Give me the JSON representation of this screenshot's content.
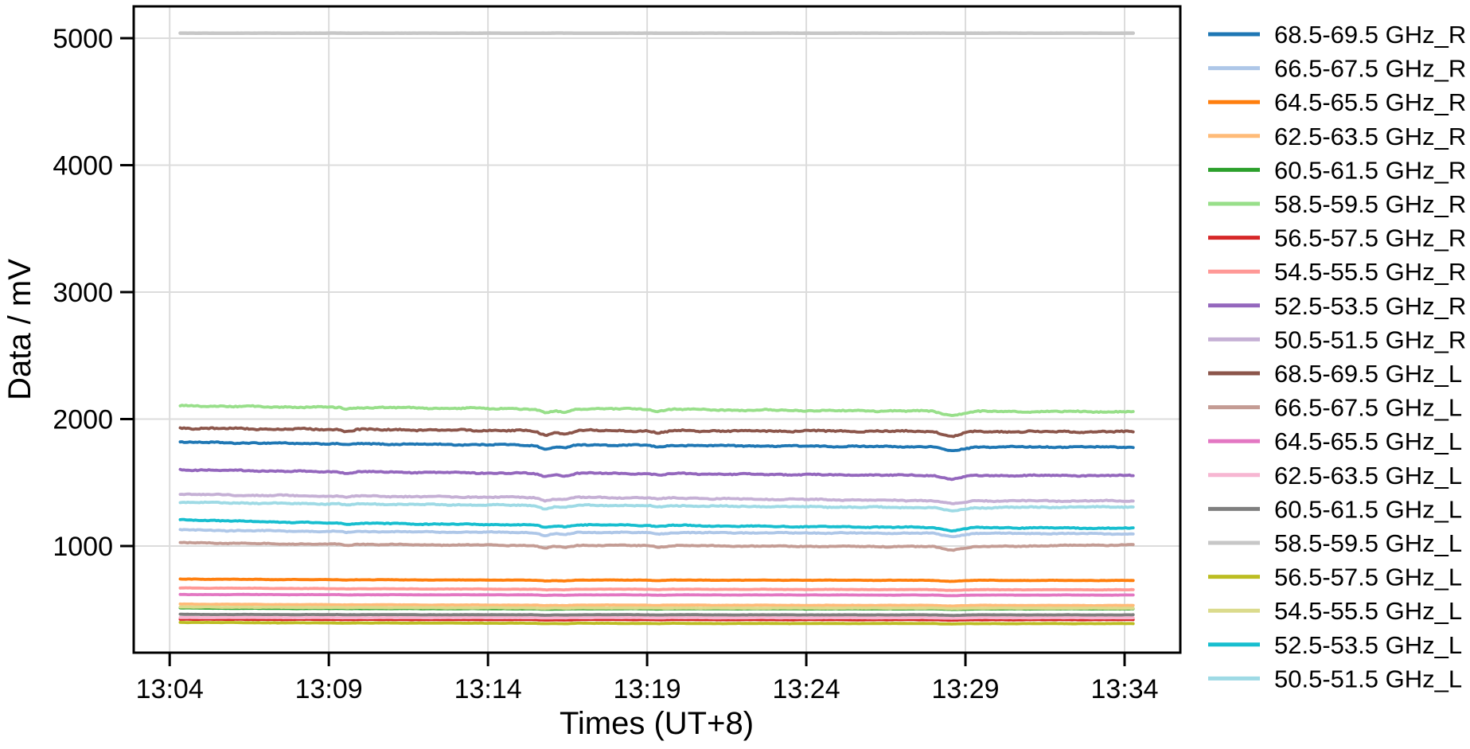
{
  "figure": {
    "background": "#ffffff",
    "spine_color": "#000000",
    "grid_color": "#dcdcdc",
    "tick_color": "#000000",
    "text_color": "#000000"
  },
  "chart_data": {
    "type": "line",
    "title": "",
    "xlabel": "Times (UT+8)",
    "ylabel": "Data / mV",
    "x_unit": "minutes after 13:00 (UT+8)",
    "grid": true,
    "legend_position": "right",
    "xlim_minutes": [
      2.87,
      35.75
    ],
    "ylim": [
      160,
      5251
    ],
    "x_ticks": [
      {
        "t": 4,
        "label": "13:04"
      },
      {
        "t": 9,
        "label": "13:09"
      },
      {
        "t": 14,
        "label": "13:14"
      },
      {
        "t": 19,
        "label": "13:19"
      },
      {
        "t": 24,
        "label": "13:24"
      },
      {
        "t": 29,
        "label": "13:29"
      },
      {
        "t": 34,
        "label": "13:34"
      }
    ],
    "y_ticks": [
      {
        "value": 1000,
        "label": "1000"
      },
      {
        "value": 2000,
        "label": "2000"
      },
      {
        "value": 3000,
        "label": "3000"
      },
      {
        "value": 4000,
        "label": "4000"
      },
      {
        "value": 5000,
        "label": "5000"
      }
    ],
    "x": [
      4.33,
      6,
      9,
      9.3,
      9.55,
      9.9,
      12,
      15,
      15.5,
      15.8,
      16.1,
      16.4,
      16.8,
      18,
      19,
      19.35,
      19.8,
      21,
      24,
      27,
      28,
      28.3,
      28.6,
      28.9,
      29.3,
      31,
      34.3
    ],
    "series": [
      {
        "name": "68.5-69.5 GHz_R",
        "color": "#1f77b4",
        "noise": 6,
        "values": [
          1818,
          1813,
          1806,
          1806,
          1794,
          1806,
          1801,
          1797,
          1790,
          1762,
          1781,
          1771,
          1797,
          1795,
          1794,
          1777,
          1794,
          1791,
          1787,
          1783,
          1782,
          1760,
          1746,
          1764,
          1780,
          1781,
          1780
        ]
      },
      {
        "name": "66.5-67.5 GHz_R",
        "color": "#aec7e8",
        "noise": 5,
        "values": [
          1127,
          1122,
          1115,
          1115,
          1106,
          1115,
          1111,
          1108,
          1103,
          1082,
          1096,
          1088,
          1108,
          1107,
          1106,
          1094,
          1106,
          1105,
          1103,
          1102,
          1101,
          1084,
          1073,
          1087,
          1100,
          1099,
          1096
        ]
      },
      {
        "name": "64.5-65.5 GHz_R",
        "color": "#ff7f0e",
        "noise": 2,
        "values": [
          740,
          738,
          735,
          735,
          732,
          735,
          733,
          732,
          730,
          724,
          728,
          726,
          732,
          732,
          732,
          728,
          732,
          731,
          731,
          730,
          730,
          725,
          722,
          726,
          730,
          729,
          729
        ]
      },
      {
        "name": "62.5-63.5 GHz_R",
        "color": "#ffbb78",
        "noise": 2,
        "values": [
          543,
          541,
          538,
          538,
          536,
          538,
          536,
          535,
          534,
          530,
          533,
          531,
          535,
          535,
          535,
          533,
          535,
          534,
          533,
          533,
          533,
          530,
          528,
          531,
          533,
          532,
          532
        ]
      },
      {
        "name": "60.5-61.5 GHz_R",
        "color": "#2ca02c",
        "noise": 1.5,
        "values": [
          512,
          510,
          508,
          508,
          507,
          508,
          507,
          506,
          505,
          502,
          504,
          503,
          506,
          506,
          506,
          504,
          506,
          506,
          505,
          505,
          505,
          503,
          501,
          503,
          504,
          505,
          505
        ]
      },
      {
        "name": "58.5-59.5 GHz_R",
        "color": "#98df8a",
        "noise": 7,
        "values": [
          2105,
          2100,
          2092,
          2092,
          2079,
          2092,
          2087,
          2082,
          2074,
          2044,
          2065,
          2053,
          2082,
          2080,
          2079,
          2061,
          2079,
          2073,
          2068,
          2064,
          2062,
          2041,
          2027,
          2044,
          2060,
          2060,
          2058
        ]
      },
      {
        "name": "56.5-57.5 GHz_R",
        "color": "#d62728",
        "noise": 1.5,
        "values": [
          424,
          423,
          422,
          422,
          421,
          422,
          421,
          421,
          420,
          417,
          419,
          418,
          421,
          421,
          421,
          419,
          421,
          420,
          420,
          420,
          420,
          418,
          416,
          418,
          419,
          420,
          420
        ]
      },
      {
        "name": "54.5-55.5 GHz_R",
        "color": "#ff9896",
        "noise": 2,
        "values": [
          670,
          668,
          664,
          664,
          662,
          664,
          662,
          660,
          659,
          654,
          657,
          655,
          660,
          660,
          660,
          657,
          660,
          659,
          658,
          657,
          657,
          653,
          651,
          654,
          656,
          656,
          656
        ]
      },
      {
        "name": "52.5-53.5 GHz_R",
        "color": "#9467bd",
        "noise": 6,
        "values": [
          1602,
          1595,
          1585,
          1585,
          1575,
          1585,
          1580,
          1574,
          1568,
          1546,
          1561,
          1553,
          1574,
          1572,
          1571,
          1558,
          1571,
          1567,
          1562,
          1558,
          1556,
          1538,
          1526,
          1541,
          1555,
          1556,
          1555
        ]
      },
      {
        "name": "50.5-51.5 GHz_R",
        "color": "#c5b0d5",
        "noise": 6,
        "values": [
          1407,
          1402,
          1394,
          1394,
          1385,
          1394,
          1389,
          1384,
          1379,
          1358,
          1372,
          1365,
          1384,
          1381,
          1380,
          1368,
          1380,
          1373,
          1367,
          1360,
          1358,
          1341,
          1330,
          1344,
          1357,
          1356,
          1355
        ]
      },
      {
        "name": "68.5-69.5 GHz_L",
        "color": "#8c564b",
        "noise": 8,
        "values": [
          1930,
          1925,
          1918,
          1918,
          1905,
          1918,
          1914,
          1910,
          1902,
          1872,
          1893,
          1882,
          1910,
          1909,
          1908,
          1889,
          1908,
          1907,
          1906,
          1904,
          1903,
          1879,
          1863,
          1883,
          1901,
          1901,
          1900
        ]
      },
      {
        "name": "66.5-67.5 GHz_L",
        "color": "#c49c94",
        "noise": 5,
        "values": [
          1027,
          1022,
          1014,
          1014,
          1006,
          1014,
          1010,
          1006,
          1001,
          982,
          995,
          988,
          1006,
          1005,
          1004,
          992,
          1004,
          1001,
          998,
          996,
          995,
          979,
          969,
          982,
          994,
          1001,
          1010
        ]
      },
      {
        "name": "64.5-65.5 GHz_L",
        "color": "#e377c2",
        "noise": 1.5,
        "values": [
          618,
          618,
          617,
          617,
          615,
          617,
          616,
          616,
          615,
          611,
          614,
          612,
          616,
          615,
          615,
          613,
          615,
          615,
          615,
          614,
          614,
          611,
          609,
          612,
          614,
          614,
          614
        ]
      },
      {
        "name": "62.5-63.5 GHz_L",
        "color": "#f7b6d2",
        "noise": 1.5,
        "values": [
          437,
          437,
          436,
          436,
          435,
          436,
          436,
          436,
          435,
          433,
          435,
          434,
          436,
          436,
          436,
          434,
          436,
          435,
          435,
          435,
          435,
          433,
          432,
          434,
          435,
          435,
          435
        ]
      },
      {
        "name": "60.5-61.5 GHz_L",
        "color": "#7f7f7f",
        "noise": 1.5,
        "values": [
          462,
          461,
          460,
          460,
          459,
          460,
          459,
          459,
          458,
          455,
          457,
          456,
          459,
          459,
          459,
          457,
          459,
          458,
          458,
          458,
          458,
          456,
          454,
          456,
          458,
          458,
          458
        ]
      },
      {
        "name": "58.5-59.5 GHz_L",
        "color": "#c7c7c7",
        "noise": 0.8,
        "values": [
          5040,
          5040,
          5040,
          5040,
          5040,
          5040,
          5040,
          5040,
          5040,
          5040,
          5040,
          5040,
          5040,
          5040,
          5040,
          5040,
          5040,
          5040,
          5040,
          5040,
          5040,
          5040,
          5040,
          5040,
          5040,
          5040,
          5040
        ]
      },
      {
        "name": "56.5-57.5 GHz_L",
        "color": "#bcbd22",
        "noise": 1.5,
        "values": [
          399,
          397,
          394,
          394,
          393,
          394,
          393,
          392,
          391,
          388,
          390,
          389,
          392,
          391,
          391,
          389,
          391,
          390,
          390,
          390,
          390,
          388,
          386,
          388,
          389,
          389,
          389
        ]
      },
      {
        "name": "54.5-55.5 GHz_L",
        "color": "#dbdb8d",
        "noise": 2,
        "values": [
          520,
          518,
          516,
          516,
          514,
          516,
          514,
          513,
          512,
          508,
          511,
          509,
          513,
          512,
          512,
          510,
          512,
          511,
          511,
          511,
          511,
          508,
          506,
          509,
          511,
          510,
          510
        ]
      },
      {
        "name": "52.5-53.5 GHz_L",
        "color": "#17becf",
        "noise": 5,
        "values": [
          1208,
          1197,
          1180,
          1180,
          1172,
          1180,
          1174,
          1168,
          1164,
          1146,
          1158,
          1152,
          1168,
          1165,
          1164,
          1154,
          1164,
          1158,
          1153,
          1148,
          1146,
          1131,
          1121,
          1134,
          1145,
          1144,
          1140
        ]
      },
      {
        "name": "50.5-51.5 GHz_L",
        "color": "#9edae5",
        "noise": 6,
        "values": [
          1345,
          1340,
          1332,
          1332,
          1322,
          1332,
          1327,
          1322,
          1316,
          1294,
          1309,
          1301,
          1322,
          1320,
          1319,
          1306,
          1319,
          1314,
          1309,
          1304,
          1303,
          1285,
          1273,
          1288,
          1302,
          1305,
          1308
        ]
      }
    ]
  }
}
